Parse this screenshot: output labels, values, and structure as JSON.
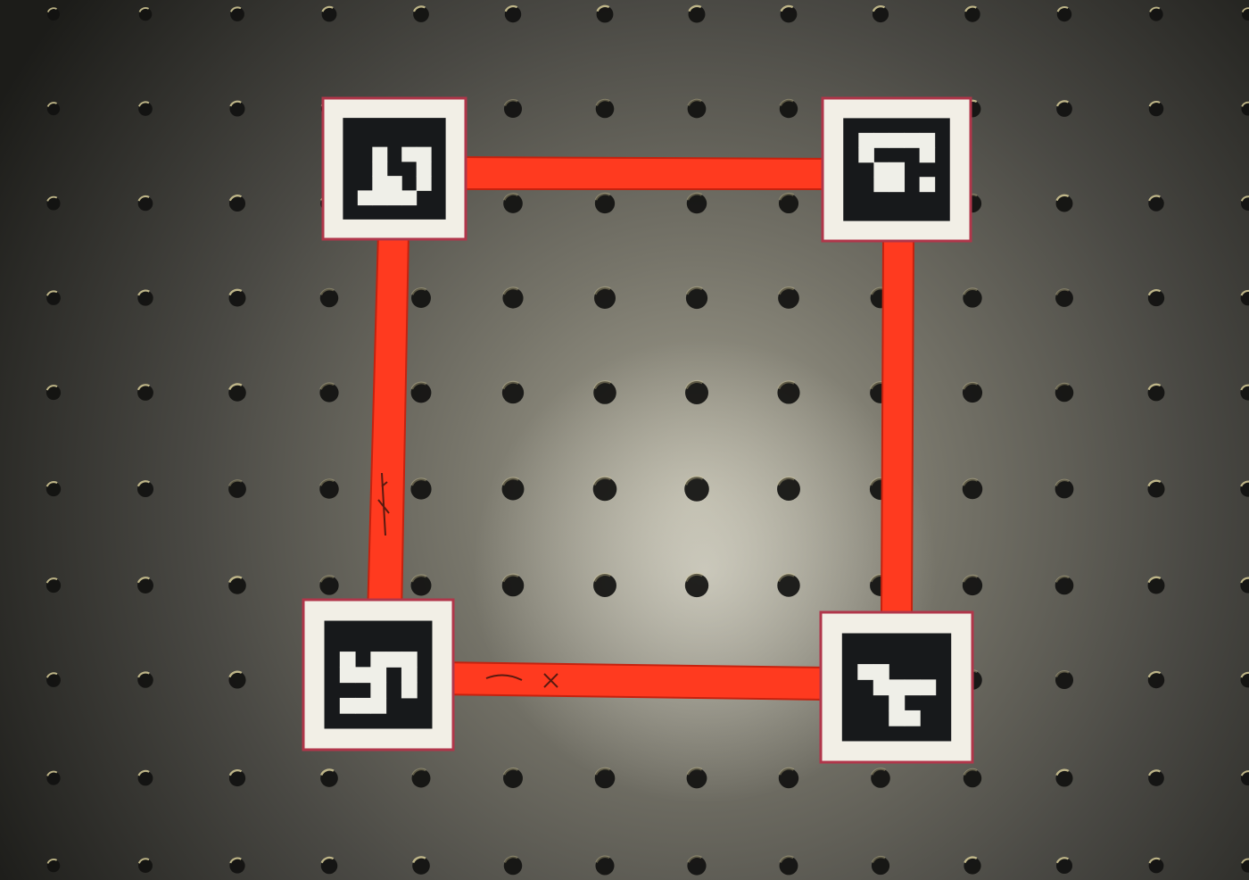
{
  "scene": {
    "description_type": "photo",
    "background": {
      "surface": "optical-breadboard",
      "colors": {
        "center": "#9a9789",
        "mid": "#5b5a52",
        "edge": "#1f1f1b",
        "hole": "#111110",
        "hole_highlight": "#d9cf9a"
      }
    },
    "frame": {
      "color": "#ff3a1f",
      "color_shadow": "#c5220f",
      "marker_count": 4
    },
    "markers": [
      {
        "name": "top-left",
        "grid": [
          [
            0,
            0,
            0,
            0,
            0
          ],
          [
            0,
            1,
            0,
            1,
            1
          ],
          [
            0,
            1,
            0,
            0,
            1
          ],
          [
            0,
            1,
            1,
            0,
            1
          ],
          [
            1,
            1,
            1,
            1,
            0
          ]
        ]
      },
      {
        "name": "top-right",
        "grid": [
          [
            1,
            1,
            1,
            1,
            1
          ],
          [
            1,
            0,
            0,
            0,
            1
          ],
          [
            0,
            1,
            1,
            0,
            0
          ],
          [
            0,
            1,
            1,
            0,
            1
          ],
          [
            0,
            0,
            0,
            0,
            0
          ]
        ]
      },
      {
        "name": "bottom-left",
        "grid": [
          [
            0,
            0,
            0,
            0,
            0
          ],
          [
            1,
            0,
            1,
            1,
            1
          ],
          [
            1,
            1,
            1,
            0,
            1
          ],
          [
            0,
            0,
            1,
            0,
            1
          ],
          [
            1,
            1,
            1,
            0,
            0
          ]
        ]
      },
      {
        "name": "bottom-right",
        "grid": [
          [
            0,
            0,
            0,
            0,
            0
          ],
          [
            1,
            1,
            0,
            0,
            0
          ],
          [
            0,
            1,
            1,
            1,
            1
          ],
          [
            0,
            0,
            1,
            0,
            0
          ],
          [
            0,
            0,
            1,
            1,
            0
          ]
        ]
      }
    ],
    "marker_colors": {
      "paper": "#f2efe6",
      "border": "#b0364a",
      "black": "#17191b",
      "white": "#efefe8"
    }
  }
}
